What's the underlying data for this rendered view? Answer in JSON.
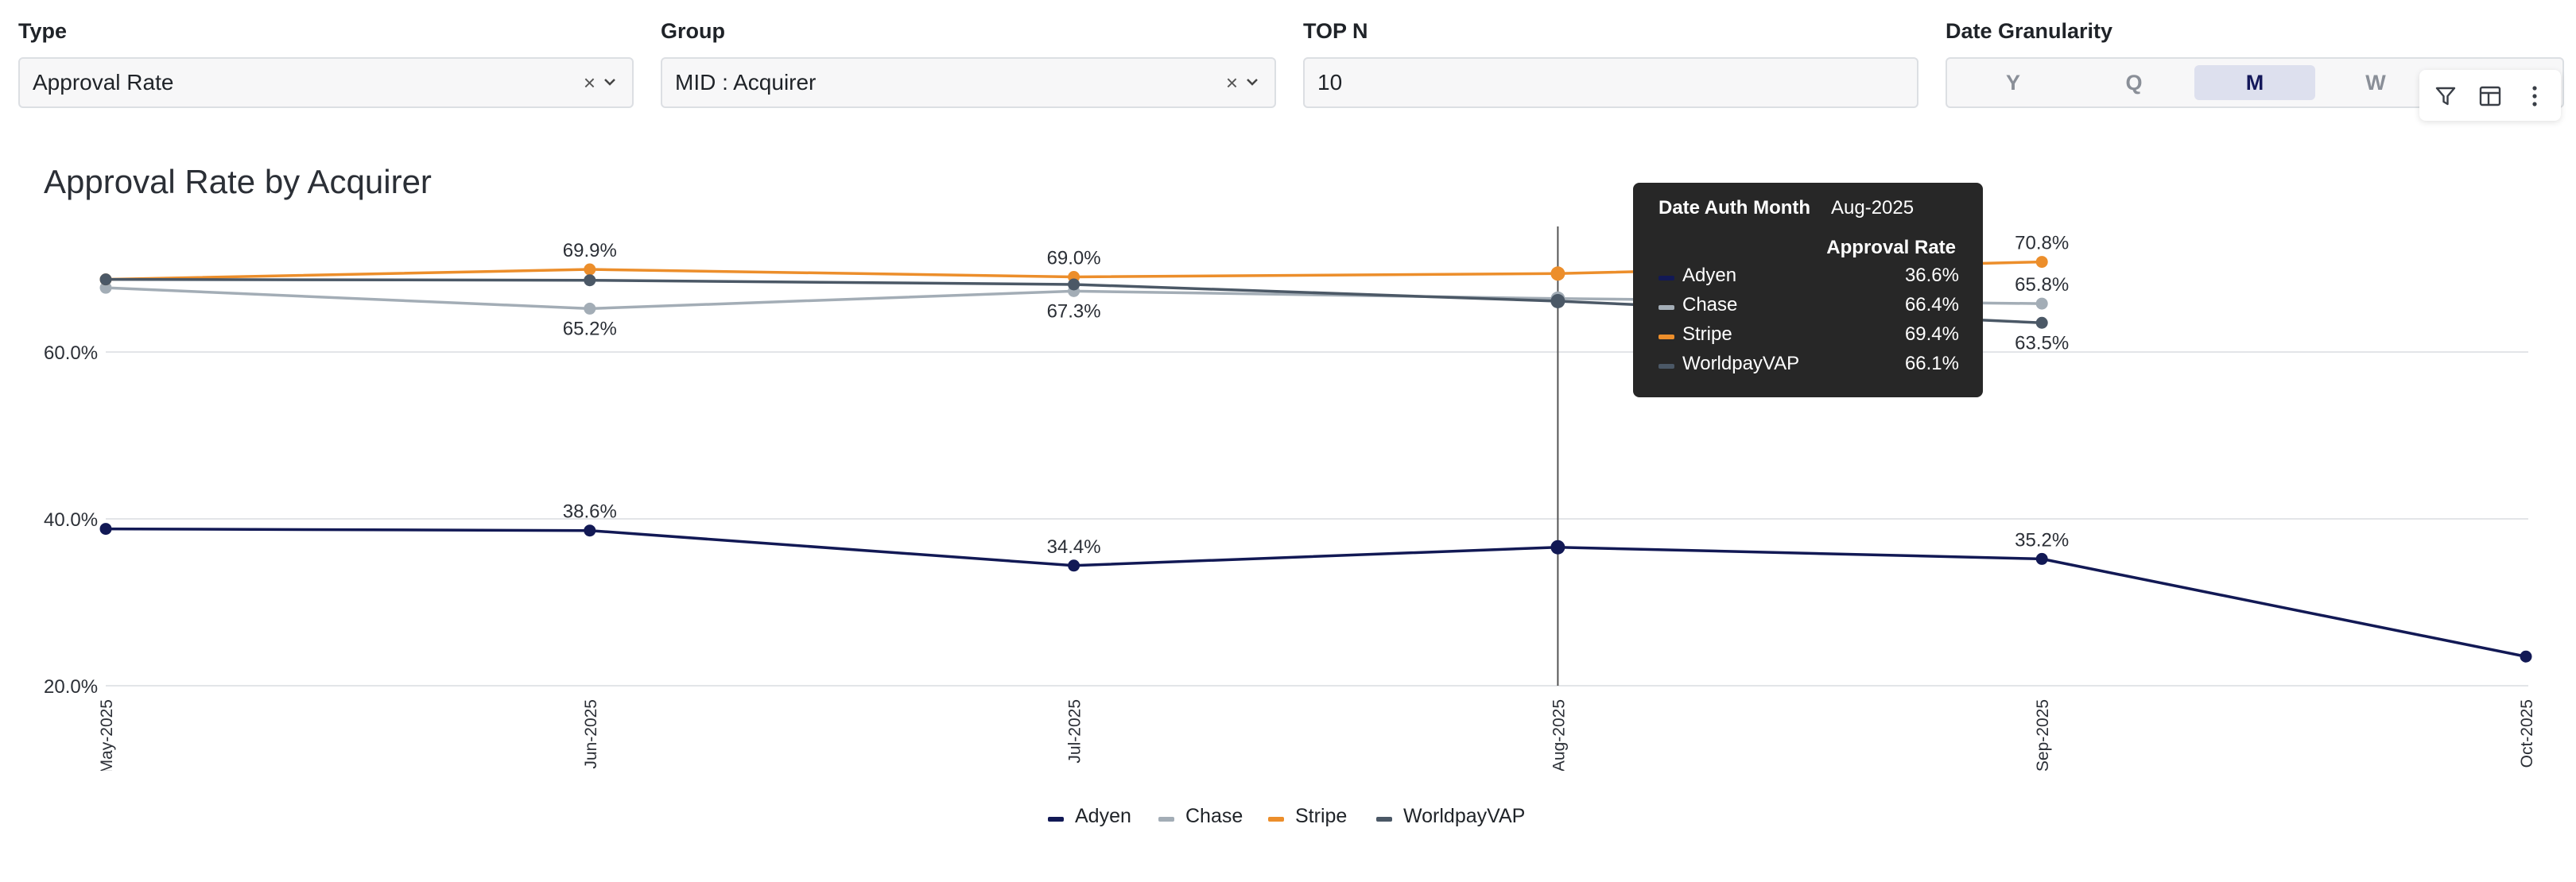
{
  "filters": {
    "type": {
      "label": "Type",
      "value": "Approval Rate",
      "clear": "×"
    },
    "group": {
      "label": "Group",
      "value": "MID : Acquirer",
      "clear": "×"
    },
    "topn": {
      "label": "TOP N",
      "value": "10"
    },
    "granularity": {
      "label": "Date Granularity",
      "options": [
        "Y",
        "Q",
        "M",
        "W"
      ],
      "selected": "M"
    }
  },
  "toolbar": {
    "icons": [
      "filter-icon",
      "table-icon",
      "more-icon"
    ]
  },
  "tooltip": {
    "header_label": "Date Auth Month",
    "header_value": "Aug-2025",
    "column": "Approval Rate",
    "rows": [
      {
        "name": "Adyen",
        "value": "36.6%"
      },
      {
        "name": "Chase",
        "value": "66.4%"
      },
      {
        "name": "Stripe",
        "value": "69.4%"
      },
      {
        "name": "WorldpayVAP",
        "value": "66.1%"
      }
    ]
  },
  "chart_data": {
    "type": "line",
    "title": "Approval Rate by Acquirer",
    "xlabel": "",
    "ylabel": "",
    "x": [
      "May-2025",
      "Jun-2025",
      "Jul-2025",
      "Aug-2025",
      "Sep-2025",
      "Oct-2025"
    ],
    "y_ticks": [
      "20.0%",
      "40.0%",
      "60.0%"
    ],
    "y_tick_values": [
      20,
      40,
      60
    ],
    "ylim": [
      20,
      72
    ],
    "grid": true,
    "legend_position": "bottom",
    "hover_x": "Aug-2025",
    "series": [
      {
        "name": "Adyen",
        "color": "#121955",
        "values": [
          38.8,
          38.6,
          34.4,
          36.6,
          35.2,
          23.5
        ],
        "labels": [
          "",
          "38.6%",
          "34.4%",
          "",
          "35.2%",
          ""
        ],
        "label_pos": [
          "",
          "above",
          "above",
          "",
          "above",
          ""
        ]
      },
      {
        "name": "Chase",
        "color": "#a3adb6",
        "values": [
          67.7,
          65.2,
          67.3,
          66.4,
          65.8,
          null
        ],
        "labels": [
          "",
          "65.2%",
          "67.3%",
          "",
          "65.8%",
          ""
        ],
        "label_pos": [
          "",
          "below",
          "below",
          "",
          "above",
          ""
        ]
      },
      {
        "name": "Stripe",
        "color": "#ec8e2b",
        "values": [
          68.7,
          69.9,
          69.0,
          69.4,
          70.8,
          null
        ],
        "labels": [
          "",
          "69.9%",
          "69.0%",
          "",
          "70.8%",
          ""
        ],
        "label_pos": [
          "",
          "above",
          "above",
          "",
          "above",
          ""
        ]
      },
      {
        "name": "WorldpayVAP",
        "color": "#4b5866",
        "values": [
          68.7,
          68.6,
          68.1,
          66.1,
          63.5,
          null
        ],
        "labels": [
          "",
          "",
          "",
          "",
          "63.5%",
          ""
        ],
        "label_pos": [
          "",
          "",
          "",
          "",
          "below",
          ""
        ]
      }
    ]
  }
}
